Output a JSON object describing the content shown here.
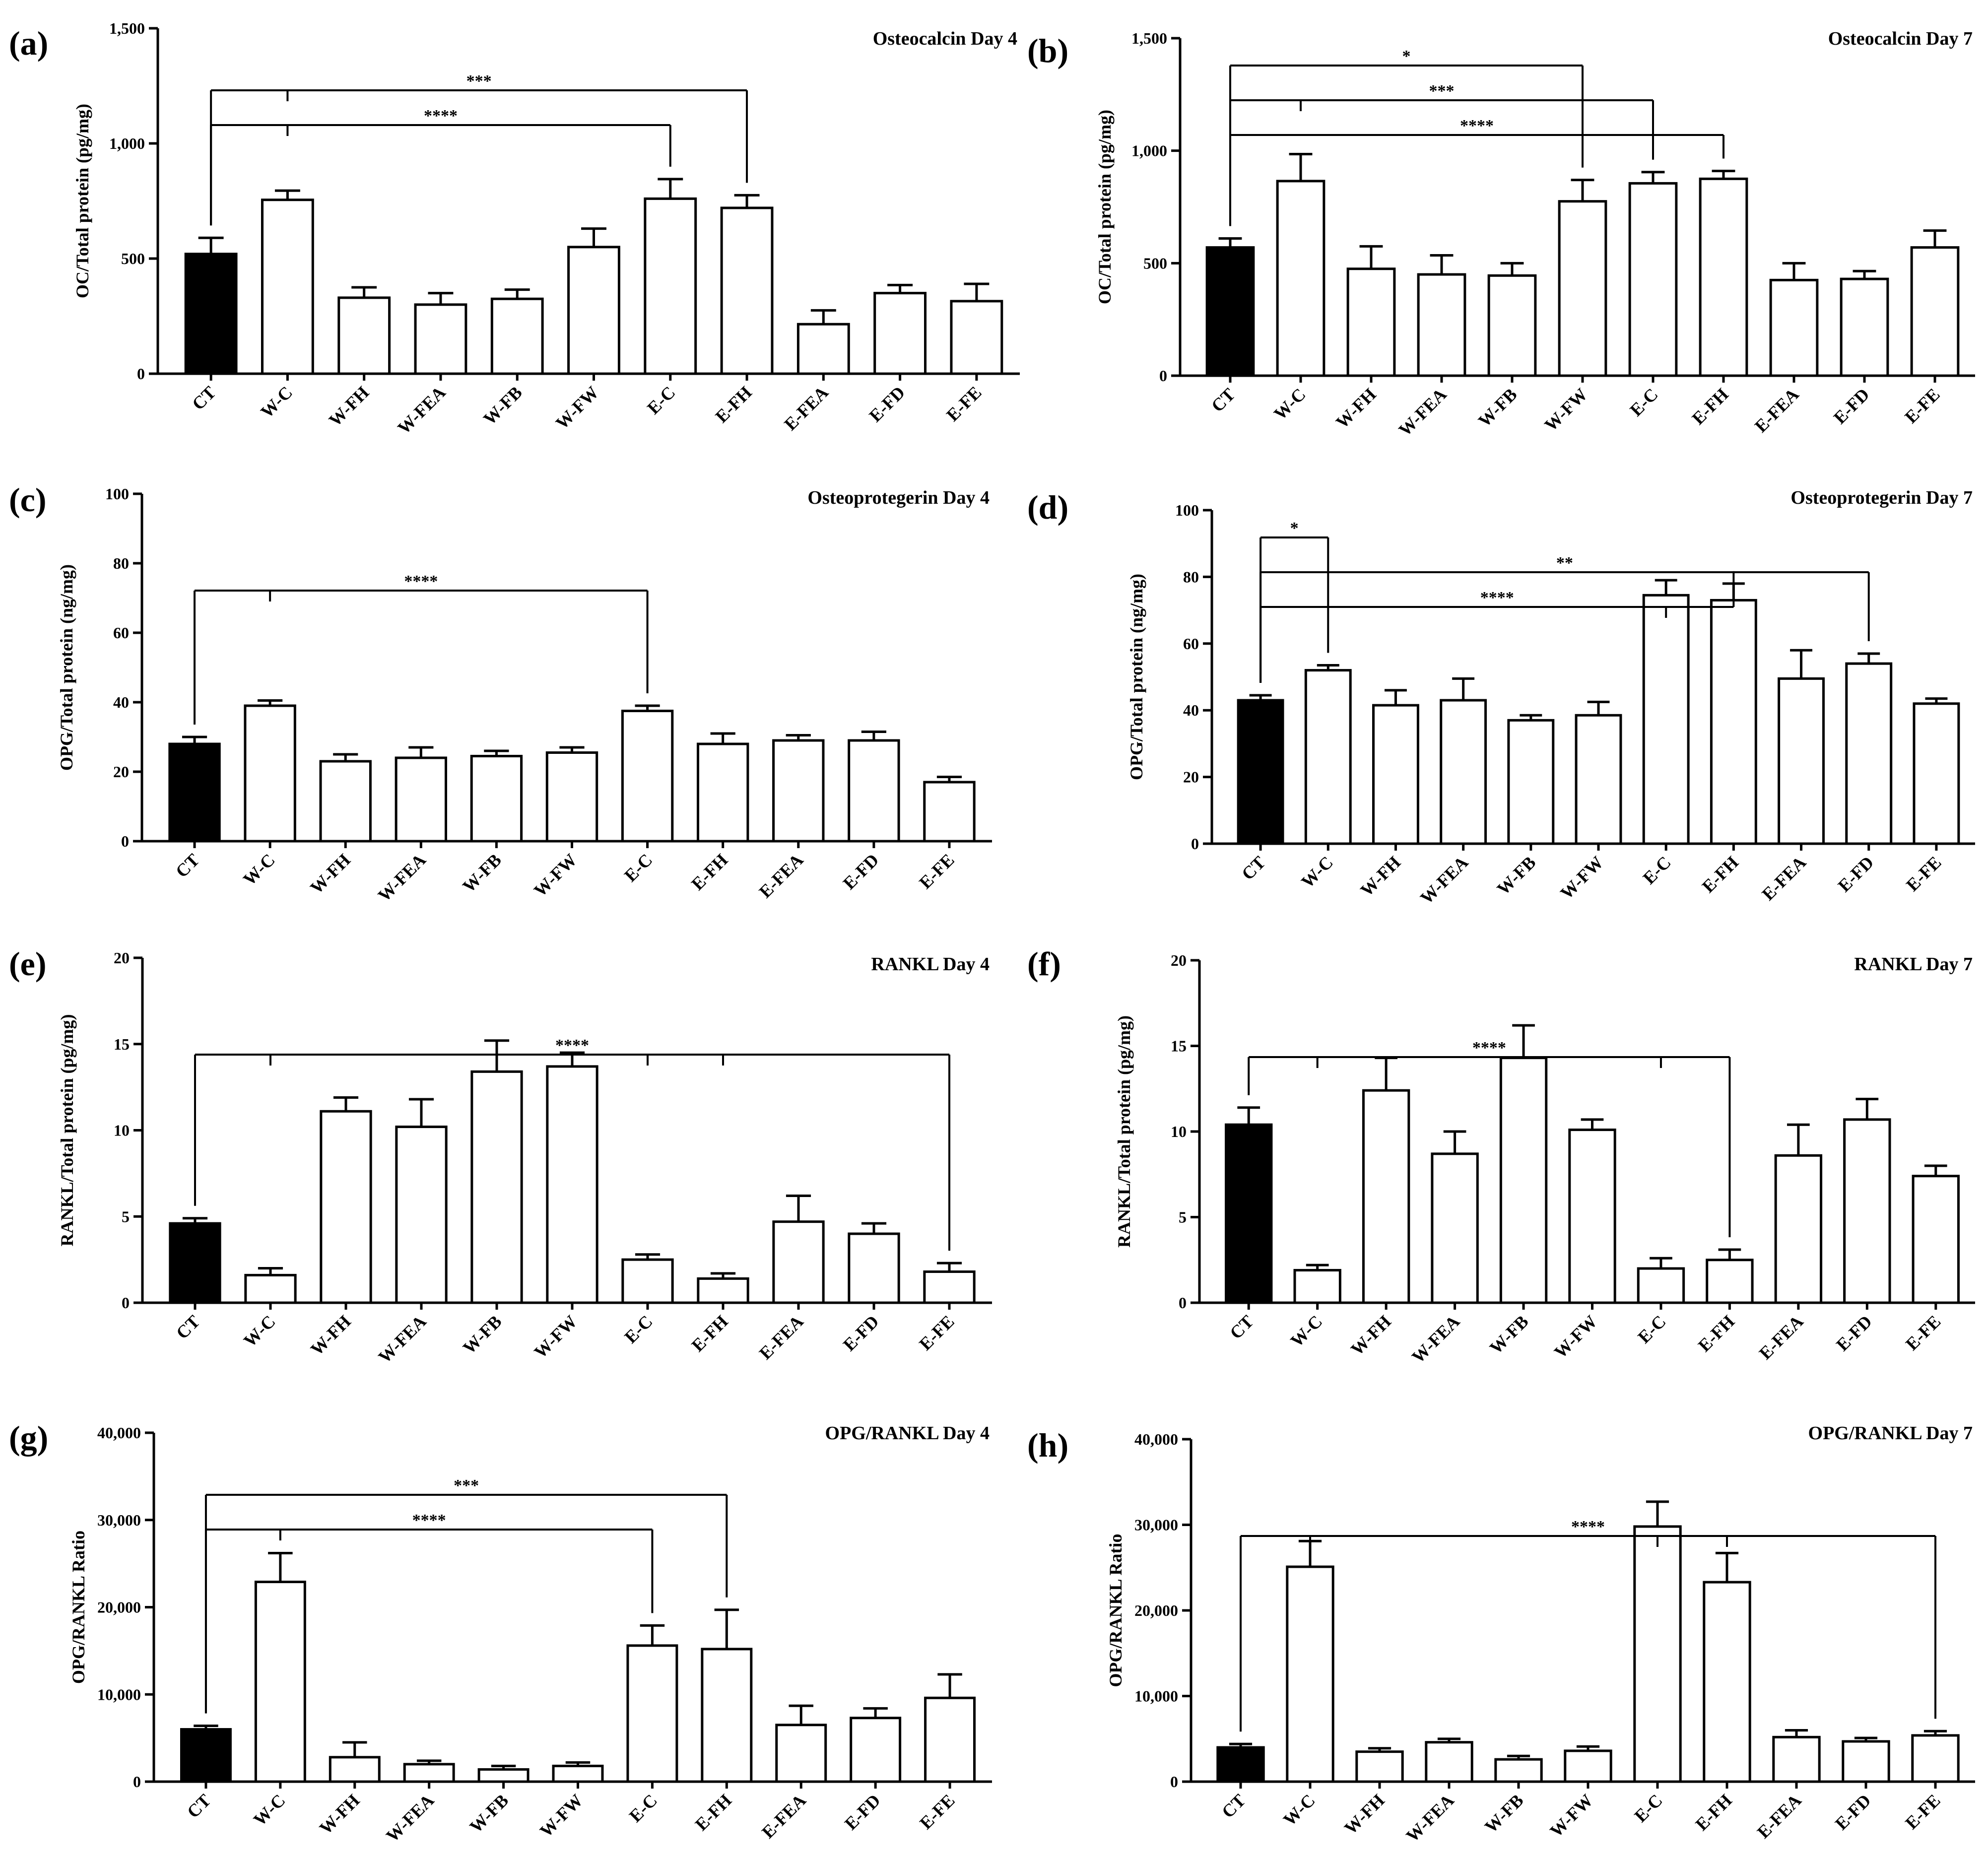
{
  "colors": {
    "control_bar": "#000000",
    "treatment_bar": "#ffffff",
    "stroke": "#000000"
  },
  "chart_data": [
    {
      "panel": "(a)",
      "type": "bar",
      "title": "Osteocalcin Day 4",
      "ylabel": "OC/Total protein (pg/mg)",
      "ylim": [
        0,
        1500
      ],
      "yticks": [
        0,
        500,
        1000,
        1500
      ],
      "ytick_labels": [
        "0",
        "500",
        "1,000",
        "1,500"
      ],
      "categories": [
        "CT",
        "W-C",
        "W-FH",
        "W-FEA",
        "W-FB",
        "W-FW",
        "E-C",
        "E-FH",
        "E-FEA",
        "E-FD",
        "E-FE"
      ],
      "values": [
        520,
        755,
        330,
        300,
        325,
        550,
        760,
        720,
        215,
        350,
        315
      ],
      "errors": [
        70,
        40,
        45,
        50,
        40,
        80,
        85,
        55,
        60,
        35,
        75
      ],
      "significance": [
        {
          "label": "***",
          "from": 0,
          "to": [
            7
          ],
          "ticks": [
            1
          ],
          "level": 1
        },
        {
          "label": "****",
          "from": 0,
          "to": [
            6
          ],
          "ticks": [
            1
          ],
          "level": 0
        }
      ]
    },
    {
      "panel": "(b)",
      "type": "bar",
      "title": "Osteocalcin Day 7",
      "ylabel": "OC/Total protein (pg/mg)",
      "ylim": [
        0,
        1500
      ],
      "yticks": [
        0,
        500,
        1000,
        1500
      ],
      "ytick_labels": [
        "0",
        "500",
        "1,000",
        "1,500"
      ],
      "categories": [
        "CT",
        "W-C",
        "W-FH",
        "W-FEA",
        "W-FB",
        "W-FW",
        "E-C",
        "E-FH",
        "E-FEA",
        "E-FD",
        "E-FE"
      ],
      "values": [
        570,
        865,
        475,
        450,
        445,
        775,
        855,
        875,
        425,
        430,
        570
      ],
      "errors": [
        40,
        120,
        100,
        85,
        55,
        95,
        50,
        35,
        75,
        35,
        75
      ],
      "significance": [
        {
          "label": "*",
          "from": 0,
          "to": [
            5
          ],
          "ticks": [],
          "level": 2
        },
        {
          "label": "***",
          "from": 0,
          "to": [
            6
          ],
          "ticks": [
            1
          ],
          "level": 1
        },
        {
          "label": "****",
          "from": 0,
          "to": [
            7
          ],
          "ticks": [],
          "level": 0
        }
      ]
    },
    {
      "panel": "(c)",
      "type": "bar",
      "title": "Osteoprotegerin Day 4",
      "ylabel": "OPG/Total protein (ng/mg)",
      "ylim": [
        0,
        100
      ],
      "yticks": [
        0,
        20,
        40,
        60,
        80,
        100
      ],
      "ytick_labels": [
        "0",
        "20",
        "40",
        "60",
        "80",
        "100"
      ],
      "categories": [
        "CT",
        "W-C",
        "W-FH",
        "W-FEA",
        "W-FB",
        "W-FW",
        "E-C",
        "E-FH",
        "E-FEA",
        "E-FD",
        "E-FE"
      ],
      "values": [
        28,
        39,
        23,
        24,
        24.5,
        25.5,
        37.5,
        28,
        29,
        29,
        17
      ],
      "errors": [
        2,
        1.5,
        2,
        3,
        1.5,
        1.5,
        1.5,
        3,
        1.5,
        2.5,
        1.5
      ],
      "significance": [
        {
          "label": "****",
          "from": 0,
          "to": [
            6
          ],
          "ticks": [
            1
          ],
          "level": 0
        }
      ]
    },
    {
      "panel": "(d)",
      "type": "bar",
      "title": "Osteoprotegerin Day 7",
      "ylabel": "OPG/Total protein (ng/mg)",
      "ylim": [
        0,
        100
      ],
      "yticks": [
        0,
        20,
        40,
        60,
        80,
        100
      ],
      "ytick_labels": [
        "0",
        "20",
        "40",
        "60",
        "80",
        "100"
      ],
      "categories": [
        "CT",
        "W-C",
        "W-FH",
        "W-FEA",
        "W-FB",
        "W-FW",
        "E-C",
        "E-FH",
        "E-FEA",
        "E-FD",
        "E-FE"
      ],
      "values": [
        43,
        52,
        41.5,
        43,
        37,
        38.5,
        74.5,
        73,
        49.5,
        54,
        42
      ],
      "errors": [
        1.5,
        1.5,
        4.5,
        6.5,
        1.5,
        4,
        4.5,
        5,
        8.5,
        3,
        1.5
      ],
      "significance": [
        {
          "label": "*",
          "from": 0,
          "to": [
            1
          ],
          "ticks": [],
          "level": 2
        },
        {
          "label": "**",
          "from": 0,
          "to": [
            9
          ],
          "ticks": [],
          "level": 1
        },
        {
          "label": "****",
          "from": 0,
          "to": [
            7
          ],
          "ticks": [
            6
          ],
          "level": 0
        }
      ]
    },
    {
      "panel": "(e)",
      "type": "bar",
      "title": "RANKL Day 4",
      "ylabel": "RANKL/Total protein (pg/mg)",
      "ylim": [
        0,
        20
      ],
      "yticks": [
        0,
        5,
        10,
        15,
        20
      ],
      "ytick_labels": [
        "0",
        "5",
        "10",
        "15",
        "20"
      ],
      "categories": [
        "CT",
        "W-C",
        "W-FH",
        "W-FEA",
        "W-FB",
        "W-FW",
        "E-C",
        "E-FH",
        "E-FEA",
        "E-FD",
        "E-FE"
      ],
      "values": [
        4.6,
        1.6,
        11.1,
        10.2,
        13.4,
        13.7,
        2.5,
        1.4,
        4.7,
        4.0,
        1.8
      ],
      "errors": [
        0.3,
        0.4,
        0.8,
        1.6,
        1.8,
        0.8,
        0.3,
        0.3,
        1.5,
        0.6,
        0.5
      ],
      "significance": [
        {
          "label": "****",
          "from": 0,
          "to": [
            10
          ],
          "ticks": [
            1,
            6,
            7
          ],
          "level": 0
        }
      ]
    },
    {
      "panel": "(f)",
      "type": "bar",
      "title": "RANKL Day 7",
      "ylabel": "RANKL/Total protein (pg/mg)",
      "ylim": [
        0,
        20
      ],
      "yticks": [
        0,
        5,
        10,
        15,
        20
      ],
      "ytick_labels": [
        "0",
        "5",
        "10",
        "15",
        "20"
      ],
      "categories": [
        "CT",
        "W-C",
        "W-FH",
        "W-FEA",
        "W-FB",
        "W-FW",
        "E-C",
        "E-FH",
        "E-FEA",
        "E-FD",
        "E-FE"
      ],
      "values": [
        10.4,
        1.9,
        12.4,
        8.7,
        14.3,
        10.1,
        2.0,
        2.5,
        8.6,
        10.7,
        7.4
      ],
      "errors": [
        1.0,
        0.3,
        1.9,
        1.3,
        1.9,
        0.6,
        0.6,
        0.6,
        1.8,
        1.2,
        0.6
      ],
      "significance": [
        {
          "label": "****",
          "from": 0,
          "to": [
            7
          ],
          "ticks": [
            1,
            6
          ],
          "level": 0
        }
      ]
    },
    {
      "panel": "(g)",
      "type": "bar",
      "title": "OPG/RANKL Day 4",
      "ylabel": "OPG/RANKL Ratio",
      "ylim": [
        0,
        40000
      ],
      "yticks": [
        0,
        10000,
        20000,
        30000,
        40000
      ],
      "ytick_labels": [
        "0",
        "10,000",
        "20,000",
        "30,000",
        "40,000"
      ],
      "categories": [
        "CT",
        "W-C",
        "W-FH",
        "W-FEA",
        "W-FB",
        "W-FW",
        "E-C",
        "E-FH",
        "E-FEA",
        "E-FD",
        "E-FE"
      ],
      "values": [
        6000,
        22900,
        2800,
        2000,
        1400,
        1800,
        15600,
        15200,
        6500,
        7300,
        9600
      ],
      "errors": [
        400,
        3300,
        1700,
        400,
        400,
        400,
        2300,
        4500,
        2200,
        1100,
        2700
      ],
      "significance": [
        {
          "label": "***",
          "from": 0,
          "to": [
            7
          ],
          "ticks": [],
          "level": 1
        },
        {
          "label": "****",
          "from": 0,
          "to": [
            6
          ],
          "ticks": [
            1
          ],
          "level": 0
        }
      ]
    },
    {
      "panel": "(h)",
      "type": "bar",
      "title": "OPG/RANKL Day 7",
      "ylabel": "OPG/RANKL Ratio",
      "ylim": [
        0,
        40000
      ],
      "yticks": [
        0,
        10000,
        20000,
        30000,
        40000
      ],
      "ytick_labels": [
        "0",
        "10,000",
        "20,000",
        "30,000",
        "40,000"
      ],
      "categories": [
        "CT",
        "W-C",
        "W-FH",
        "W-FEA",
        "W-FB",
        "W-FW",
        "E-C",
        "E-FH",
        "E-FEA",
        "E-FD",
        "E-FE"
      ],
      "values": [
        4000,
        25100,
        3500,
        4600,
        2600,
        3600,
        29800,
        23300,
        5200,
        4700,
        5400
      ],
      "errors": [
        400,
        3000,
        400,
        400,
        400,
        500,
        2900,
        3400,
        800,
        400,
        500
      ],
      "significance": [
        {
          "label": "****",
          "from": 0,
          "to": [
            10
          ],
          "ticks": [
            1,
            6,
            7
          ],
          "level": 0
        }
      ]
    }
  ]
}
